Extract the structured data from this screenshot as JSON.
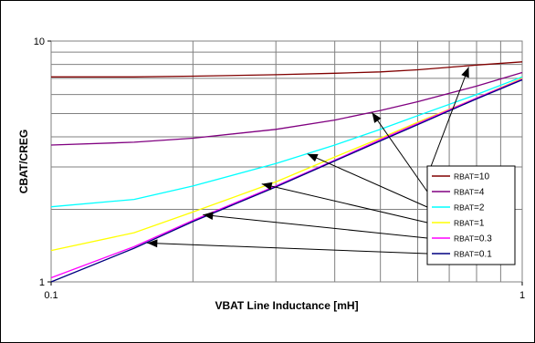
{
  "chart_data": {
    "type": "line",
    "title": "",
    "xlabel": {
      "sub": "VBAT",
      "text": " Line Inductance [mH]"
    },
    "ylabel": {
      "a": "CBAT",
      "slash": "/",
      "b": "CREG"
    },
    "x_scale": "log",
    "y_scale": "log",
    "xlim": [
      0.1,
      1
    ],
    "ylim": [
      1,
      10
    ],
    "x_tick_labels": [
      "0.1",
      "1"
    ],
    "y_tick_labels": [
      "1",
      "10"
    ],
    "grid": true,
    "legend_position": "right",
    "x": [
      0.1,
      0.15,
      0.2,
      0.3,
      0.4,
      0.5,
      0.6,
      0.8,
      1.0
    ],
    "series": [
      {
        "name": "RBAT=10",
        "prefix": "RBAT",
        "value": "=10",
        "color": "#800000",
        "values": [
          7.1,
          7.1,
          7.15,
          7.25,
          7.35,
          7.45,
          7.6,
          7.95,
          8.2
        ]
      },
      {
        "name": "RBAT=4",
        "prefix": "RBAT",
        "value": "=4",
        "color": "#800080",
        "values": [
          3.7,
          3.8,
          3.95,
          4.3,
          4.7,
          5.15,
          5.6,
          6.5,
          7.4
        ]
      },
      {
        "name": "RBAT=2",
        "prefix": "RBAT",
        "value": "=2",
        "color": "#00ffff",
        "values": [
          2.05,
          2.2,
          2.5,
          3.1,
          3.7,
          4.3,
          4.9,
          6.0,
          7.1
        ]
      },
      {
        "name": "RBAT=1",
        "prefix": "RBAT",
        "value": "=1",
        "color": "#ffff00",
        "values": [
          1.35,
          1.6,
          1.95,
          2.6,
          3.3,
          3.95,
          4.6,
          5.8,
          7.0
        ]
      },
      {
        "name": "RBAT=0.3",
        "prefix": "RBAT",
        "value": "=0.3",
        "color": "#ff00ff",
        "values": [
          1.04,
          1.4,
          1.8,
          2.5,
          3.2,
          3.9,
          4.55,
          5.8,
          6.95
        ]
      },
      {
        "name": "RBAT=0.1",
        "prefix": "RBAT",
        "value": "=0.1",
        "color": "#000080",
        "values": [
          1.0,
          1.38,
          1.78,
          2.48,
          3.18,
          3.85,
          4.5,
          5.75,
          6.9
        ]
      }
    ],
    "annotations": [
      {
        "series": "RBAT=10",
        "x": 0.77,
        "y": 7.8
      },
      {
        "series": "RBAT=4",
        "x": 0.48,
        "y": 5.05
      },
      {
        "series": "RBAT=2",
        "x": 0.35,
        "y": 3.4
      },
      {
        "series": "RBAT=1",
        "x": 0.28,
        "y": 2.55
      },
      {
        "series": "RBAT=0.3",
        "x": 0.21,
        "y": 1.9
      },
      {
        "series": "RBAT=0.1",
        "x": 0.16,
        "y": 1.45
      }
    ]
  }
}
